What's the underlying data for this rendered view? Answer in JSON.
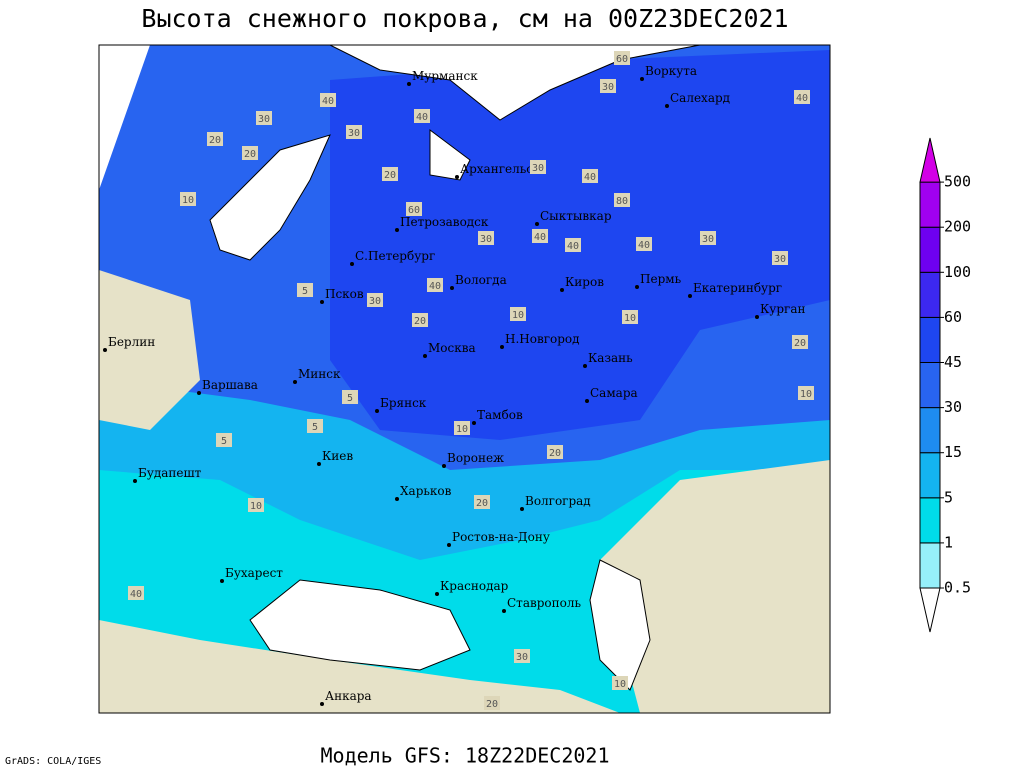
{
  "header": {
    "title": "Высота снежного покрова, см на 00Z23DEC2021",
    "subtitle": "Модель GFS: 18Z22DEC2021",
    "credit": "GrADS: COLA/IGES"
  },
  "cities": [
    "Мурманск",
    "Воркута",
    "Салехард",
    "Архангельск",
    "Сыктывкар",
    "Петрозаводск",
    "С.Петербург",
    "Вологда",
    "Киров",
    "Пермь",
    "Екатеринбург",
    "Курган",
    "Псков",
    "Берлин",
    "Н.Новгород",
    "Москва",
    "Казань",
    "Минск",
    "Варшава",
    "Самара",
    "Брянск",
    "Тамбов",
    "Киев",
    "Воронеж",
    "Будапешт",
    "Харьков",
    "Волгоград",
    "Ростов-на-Дону",
    "Бухарест",
    "Краснодар",
    "Ставрополь",
    "Анкара"
  ],
  "contour_labels": [
    "40",
    "60",
    "30",
    "40",
    "30",
    "40",
    "30",
    "20",
    "20",
    "10",
    "40",
    "20",
    "30",
    "60",
    "80",
    "40",
    "30",
    "40",
    "30",
    "40",
    "30",
    "40",
    "30",
    "20",
    "5",
    "10",
    "10",
    "20",
    "10",
    "5",
    "5",
    "10",
    "20",
    "5",
    "10",
    "20",
    "40",
    "30",
    "20",
    "10"
  ],
  "colorbar": {
    "levels": [
      0.5,
      1,
      5,
      15,
      30,
      45,
      60,
      100,
      200,
      500
    ],
    "colors": [
      "#ffffff",
      "#96f0fa",
      "#00dcea",
      "#14b4f0",
      "#1e8cf0",
      "#2864f0",
      "#1e46f0",
      "#3c28f0",
      "#6e00f0",
      "#a000f0",
      "#d200e6"
    ]
  }
}
